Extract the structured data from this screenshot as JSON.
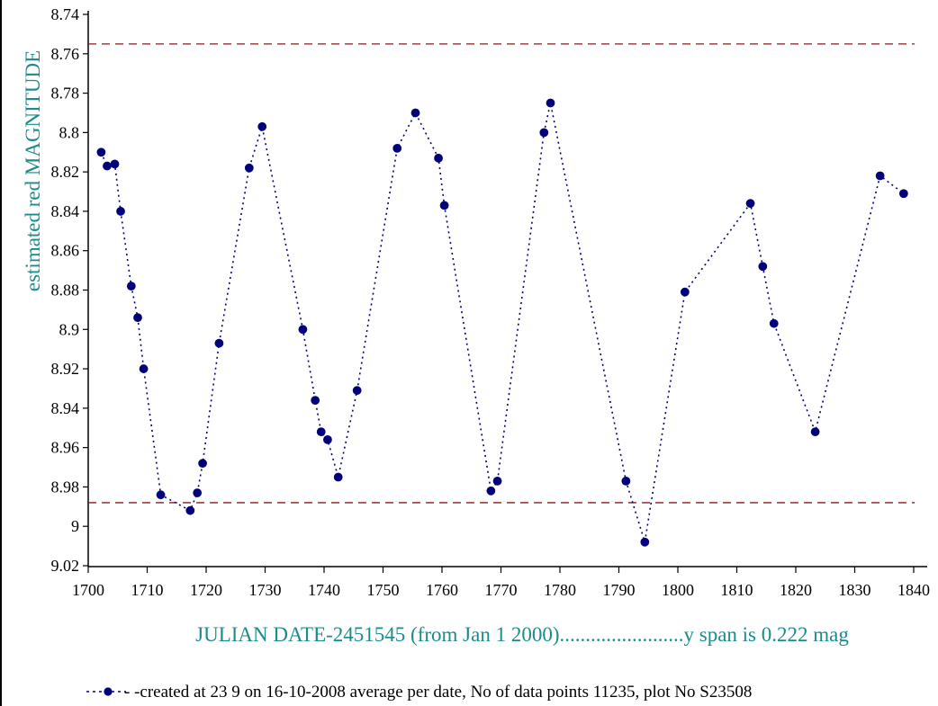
{
  "chart_data": {
    "type": "line",
    "ylabel": "estimated red MAGNITUDE",
    "xlabel": "JULIAN DATE-2451545 (from Jan 1 2000)........................y span is 0.222 mag",
    "legend_text": "- -created at 23 9 on 16-10-2008 average per date, No of data points 11235,  plot No S23508",
    "legend_placement": "bottom",
    "xlim": [
      1700,
      1840
    ],
    "ylim": [
      8.74,
      9.02
    ],
    "y_inverted": true,
    "x_ticks": [
      "1700",
      "1710",
      "1720",
      "1730",
      "1740",
      "1750",
      "1760",
      "1770",
      "1780",
      "1790",
      "1800",
      "1810",
      "1820",
      "1830",
      "1840"
    ],
    "y_ticks": [
      "8.74",
      "8.76",
      "8.78",
      "8.8",
      "8.82",
      "8.84",
      "8.86",
      "8.88",
      "8.9",
      "8.92",
      "8.94",
      "8.96",
      "8.98",
      "9",
      "9.02"
    ],
    "reference_lines": [
      8.755,
      8.988
    ],
    "grid": false,
    "colors": {
      "series": "#00007f",
      "reference": "#8b1a1a",
      "label": "#1b8b8b",
      "axis": "#000000"
    },
    "series": [
      {
        "x": [
          1702.2,
          1703.2,
          1704.5,
          1705.5,
          1707.3,
          1708.4,
          1709.4,
          1712.3,
          1717.3,
          1718.5,
          1719.4,
          1722.2,
          1727.3,
          1729.5,
          1736.4,
          1738.5,
          1739.5,
          1740.6,
          1742.4,
          1745.6,
          1752.4,
          1755.5,
          1759.4,
          1760.4,
          1768.3,
          1769.4,
          1777.3,
          1778.4,
          1791.2,
          1794.4,
          1801.2,
          1812.3,
          1814.4,
          1816.3,
          1823.3,
          1834.3,
          1838.3
        ],
        "values": [
          8.81,
          8.817,
          8.816,
          8.84,
          8.878,
          8.894,
          8.92,
          8.984,
          8.992,
          8.983,
          8.968,
          8.907,
          8.818,
          8.797,
          8.9,
          8.936,
          8.952,
          8.956,
          8.975,
          8.931,
          8.808,
          8.79,
          8.813,
          8.837,
          8.982,
          8.977,
          8.8,
          8.785,
          8.977,
          9.008,
          8.881,
          8.836,
          8.868,
          8.897,
          8.952,
          8.822,
          8.831
        ]
      }
    ]
  }
}
